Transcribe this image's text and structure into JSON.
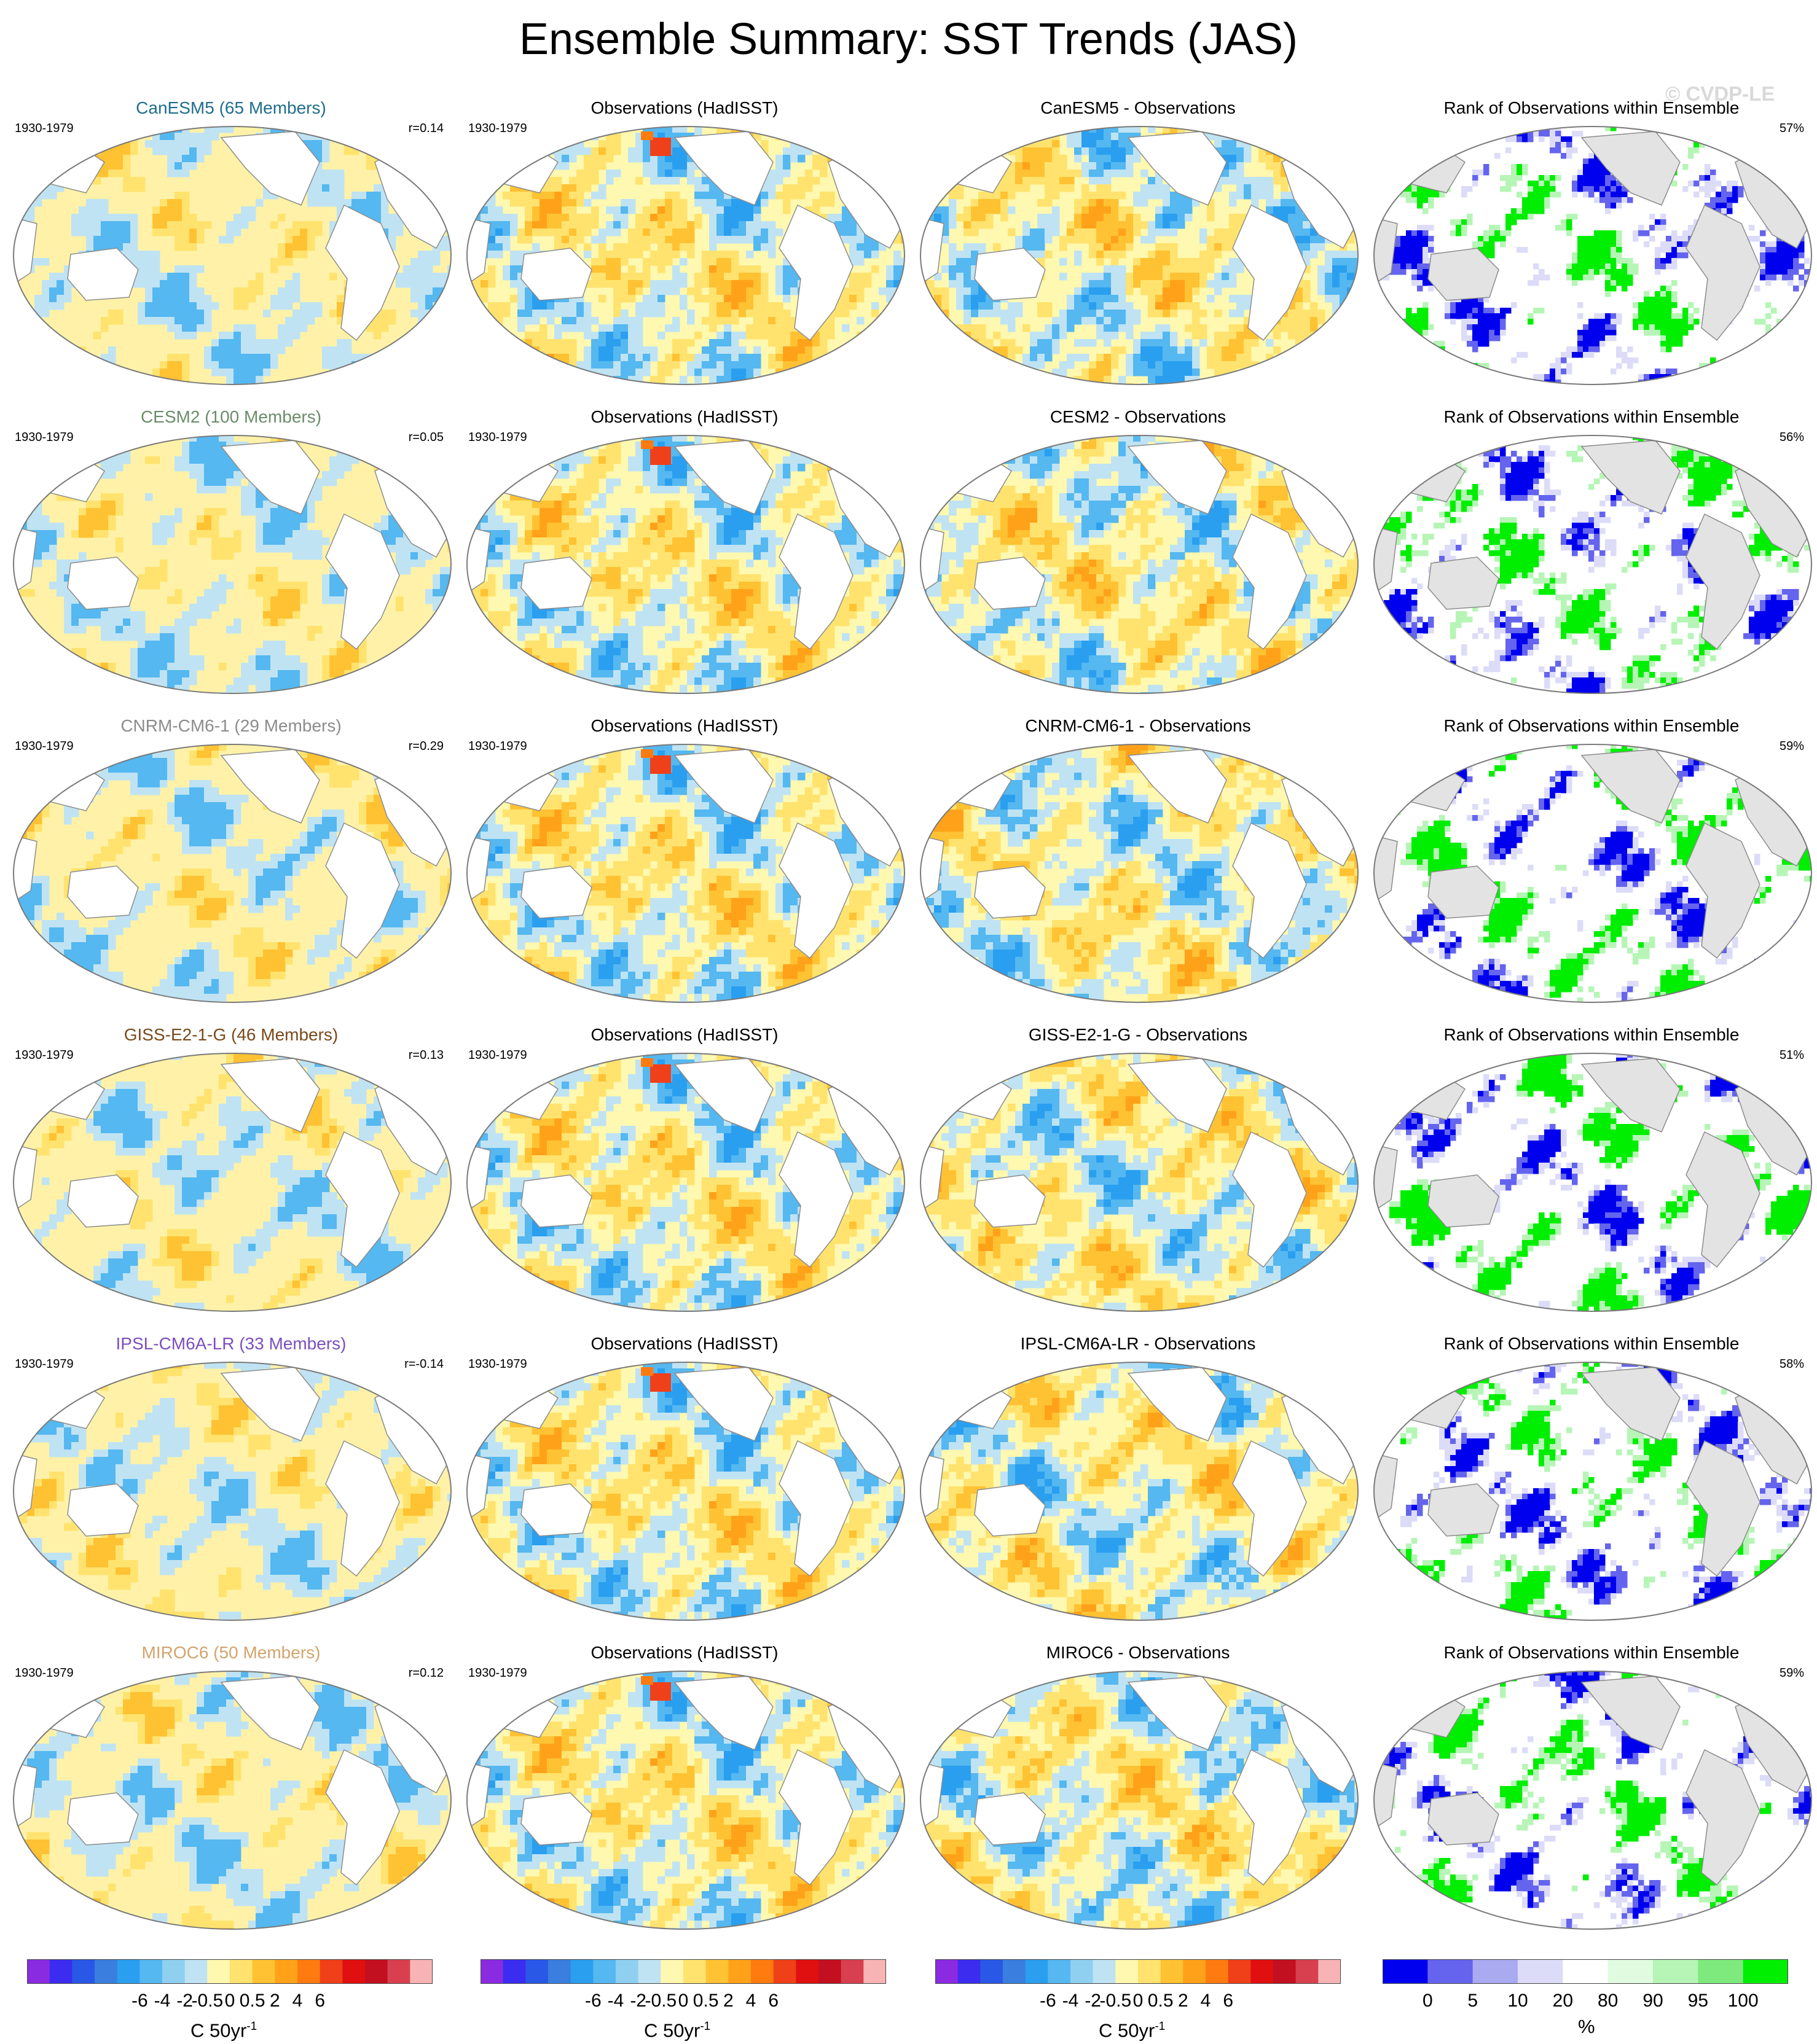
{
  "title": "Ensemble Summary: SST Trends (JAS)",
  "watermark": "© CVDP-LE",
  "period": "1930-1979",
  "obs_title": "Observations (HadISST)",
  "rank_title": "Rank of Observations within Ensemble",
  "colors": {
    "land": "#ffffff",
    "rank_land": "#e3e3e3",
    "coast": "#8c8c8c"
  },
  "rows": [
    {
      "model_title": "CanESM5 (65 Members)",
      "title_color": "#1f6e8c",
      "r": "r=0.14",
      "diff_title": "CanESM5 - Observations",
      "rank_pct": "57%"
    },
    {
      "model_title": "CESM2 (100 Members)",
      "title_color": "#6a8c6a",
      "r": "r=0.05",
      "diff_title": "CESM2 - Observations",
      "rank_pct": "56%"
    },
    {
      "model_title": "CNRM-CM6-1 (29 Members)",
      "title_color": "#8c8c8c",
      "r": "r=0.29",
      "diff_title": "CNRM-CM6-1 - Observations",
      "rank_pct": "59%"
    },
    {
      "model_title": "GISS-E2-1-G (46 Members)",
      "title_color": "#7a4a1c",
      "r": "r=0.13",
      "diff_title": "GISS-E2-1-G - Observations",
      "rank_pct": "51%"
    },
    {
      "model_title": "IPSL-CM6A-LR (33 Members)",
      "title_color": "#7c4fbf",
      "r": "r=-0.14",
      "diff_title": "IPSL-CM6A-LR - Observations",
      "rank_pct": "58%"
    },
    {
      "model_title": "MIROC6 (50 Members)",
      "title_color": "#d4a46c",
      "r": "r=0.12",
      "diff_title": "MIROC6 - Observations",
      "rank_pct": "59%"
    }
  ],
  "trend_colorbar": {
    "colors": [
      "#8a2be2",
      "#3c2cf0",
      "#2a58e6",
      "#3a7ee0",
      "#2a9ff0",
      "#55b8f0",
      "#8fd0f0",
      "#bfe3f3",
      "#fff8b0",
      "#ffe36e",
      "#ffc233",
      "#ffa21a",
      "#ff7b0f",
      "#f0401a",
      "#e01010",
      "#c21020",
      "#d84050",
      "#f8b4b4"
    ],
    "ticks": [
      "-6",
      "-4",
      "-2",
      "-0.5",
      "0",
      "0.5",
      "2",
      "4",
      "6"
    ],
    "units": "C 50yr",
    "units_sup": "-1"
  },
  "rank_colorbar": {
    "colors": [
      "#0000ee",
      "#6464ee",
      "#aaaaf0",
      "#dcdcf8",
      "#ffffff",
      "#e0fbe0",
      "#b6f5b6",
      "#7eea7e",
      "#00ee00"
    ],
    "ticks": [
      "0",
      "5",
      "10",
      "20",
      "80",
      "90",
      "95",
      "100"
    ],
    "units": "%"
  }
}
